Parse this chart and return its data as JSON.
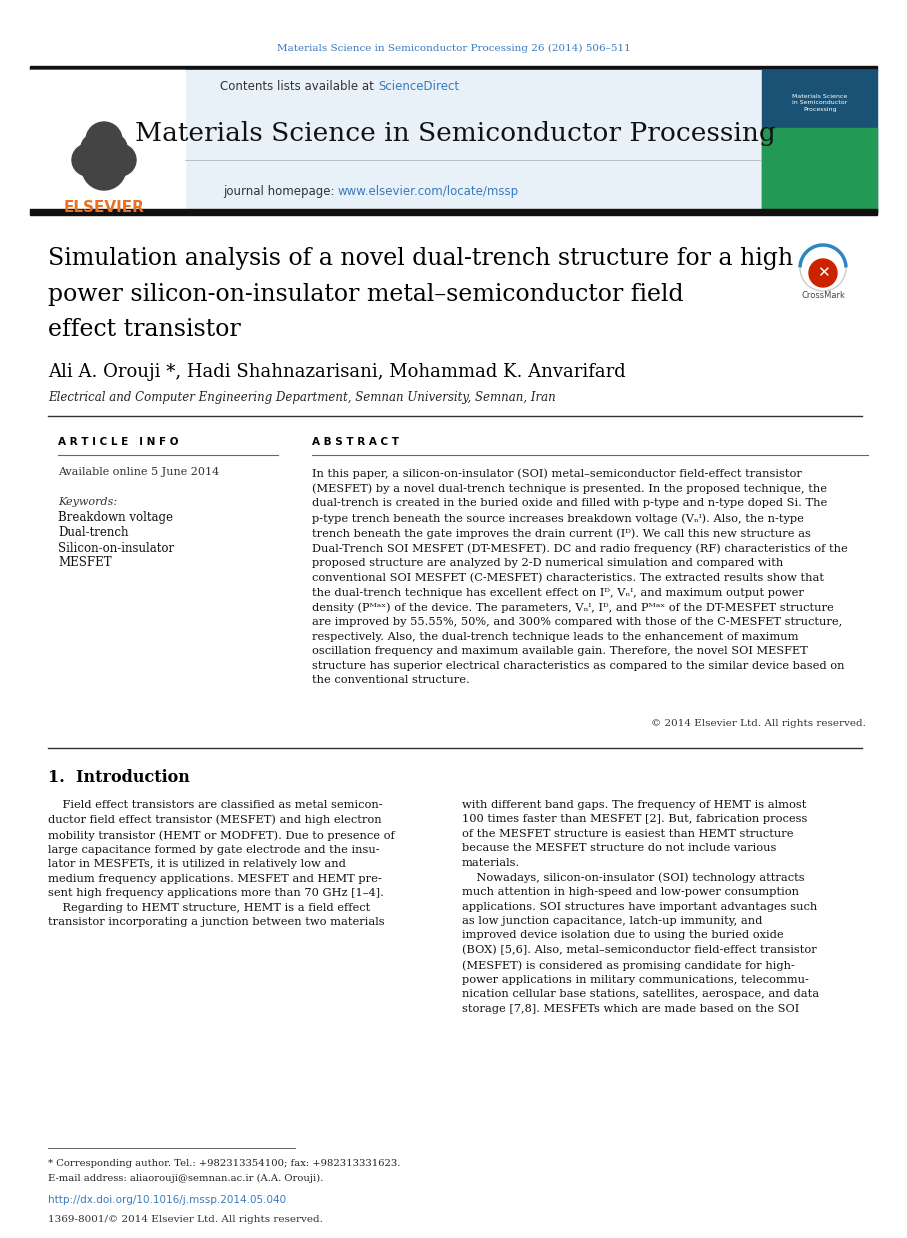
{
  "journal_ref": "Materials Science in Semiconductor Processing 26 (2014) 506–511",
  "journal_name": "Materials Science in Semiconductor Processing",
  "contents_text": "Contents lists available at ",
  "sciencedirect_text": "ScienceDirect",
  "homepage_text": "journal homepage: ",
  "homepage_url": "www.elsevier.com/locate/mssp",
  "elsevier_text": "ELSEVIER",
  "authors": "Ali A. Orouji *, Hadi Shahnazarisani, Mohammad K. Anvarifard",
  "affiliation": "Electrical and Computer Engineering Department, Semnan University, Semnan, Iran",
  "article_info_header": "A R T I C L E   I N F O",
  "abstract_header": "A B S T R A C T",
  "available_online": "Available online 5 June 2014",
  "keywords_label": "Keywords:",
  "keywords": [
    "Breakdown voltage",
    "Dual-trench",
    "Silicon-on-insulator",
    "MESFET"
  ],
  "copyright": "© 2014 Elsevier Ltd. All rights reserved.",
  "intro_header": "1.  Introduction",
  "footnote_star": "* Corresponding author. Tel.: +982313354100; fax: +982313331623.",
  "footnote_email": "E-mail address: aliaorouji@semnan.ac.ir (A.A. Orouji).",
  "footnote_doi": "http://dx.doi.org/10.1016/j.mssp.2014.05.040",
  "footnote_issn": "1369-8001/© 2014 Elsevier Ltd. All rights reserved.",
  "header_bg": "#e8f0f8",
  "journal_color": "#3a7abf",
  "sciencedirect_color": "#3a7abf",
  "url_color": "#3a7abf",
  "elsevier_color": "#e87020",
  "doi_color": "#3a7abf",
  "top_bar_color": "#111111"
}
